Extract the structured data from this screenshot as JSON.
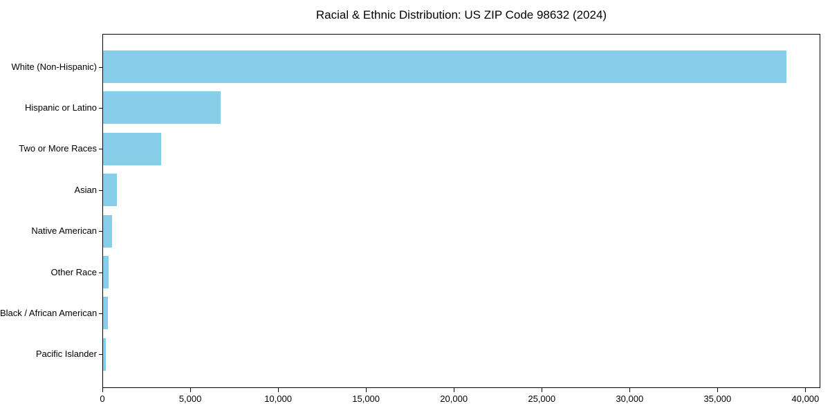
{
  "chart_data": {
    "type": "bar",
    "orientation": "horizontal",
    "title": "Racial & Ethnic Distribution: US ZIP Code 98632 (2024)",
    "categories": [
      "White (Non-Hispanic)",
      "Hispanic or Latino",
      "Two or More Races",
      "Asian",
      "Native American",
      "Other Race",
      "Black / African American",
      "Pacific Islander"
    ],
    "values": [
      38900,
      6700,
      3300,
      800,
      520,
      320,
      280,
      170
    ],
    "bar_color": "#87CEEB",
    "text_color": "#000000",
    "xlabel": "",
    "ylabel": "",
    "xlim": [
      0,
      40850
    ],
    "x_ticks": [
      {
        "value": 0,
        "label": "0"
      },
      {
        "value": 5000,
        "label": "5,000"
      },
      {
        "value": 10000,
        "label": "10,000"
      },
      {
        "value": 15000,
        "label": "15,000"
      },
      {
        "value": 20000,
        "label": "20,000"
      },
      {
        "value": 25000,
        "label": "25,000"
      },
      {
        "value": 30000,
        "label": "30,000"
      },
      {
        "value": 35000,
        "label": "35,000"
      },
      {
        "value": 40000,
        "label": "40,000"
      }
    ],
    "grid": false,
    "legend": null,
    "first_category_at_top": true
  }
}
